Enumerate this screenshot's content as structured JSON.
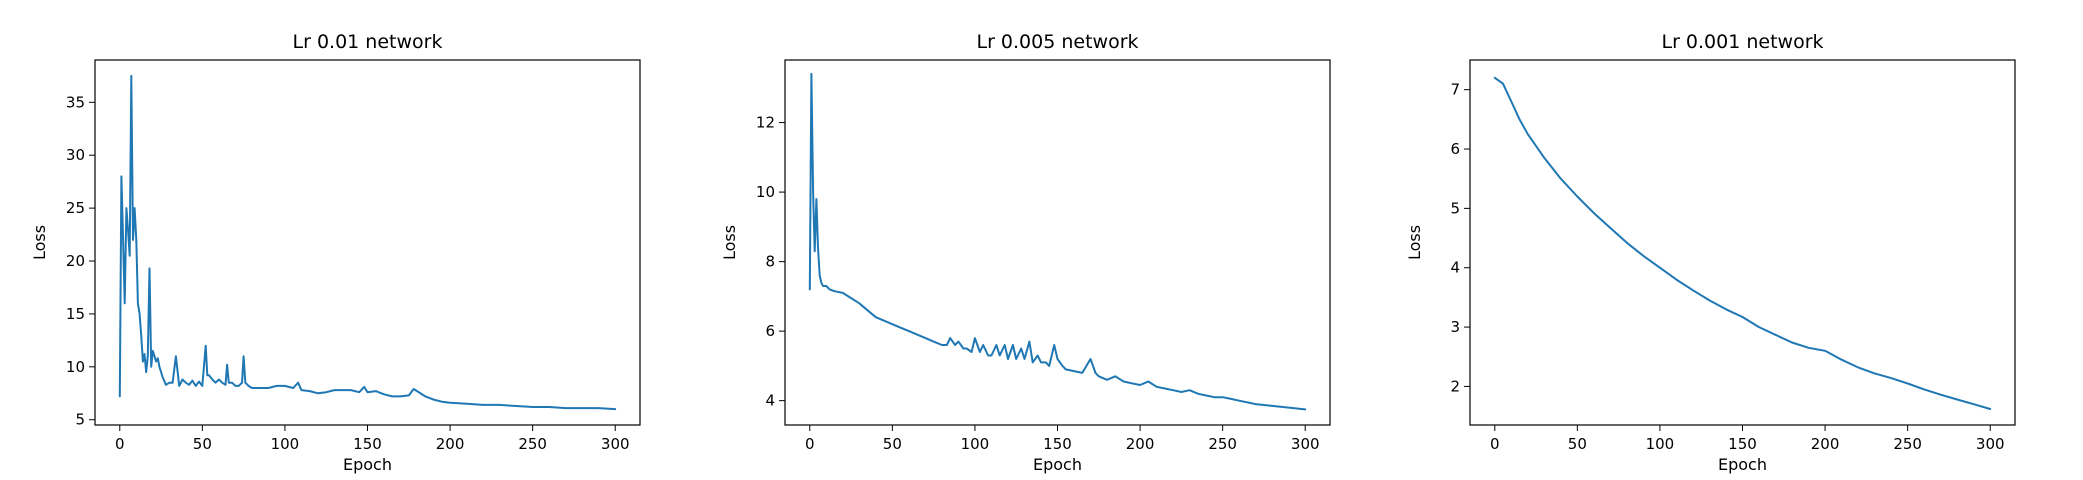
{
  "chart_data": [
    {
      "type": "line",
      "title": "Lr 0.01 network",
      "xlabel": "Epoch",
      "ylabel": "Loss",
      "xlim": [
        -15,
        315
      ],
      "ylim": [
        4.5,
        39
      ],
      "xticks": [
        0,
        50,
        100,
        150,
        200,
        250,
        300
      ],
      "yticks": [
        5,
        10,
        15,
        20,
        25,
        30,
        35
      ],
      "color": "#1f77b4",
      "grid": false,
      "legend": "none",
      "series": [
        {
          "x": [
            0,
            1,
            2,
            3,
            4,
            5,
            6,
            7,
            8,
            9,
            10,
            11,
            12,
            13,
            14,
            15,
            16,
            17,
            18,
            19,
            20,
            21,
            22,
            23,
            24,
            25,
            26,
            28,
            30,
            32,
            34,
            36,
            37,
            38,
            40,
            42,
            44,
            46,
            48,
            50,
            52,
            53,
            54,
            56,
            58,
            60,
            62,
            64,
            65,
            66,
            68,
            70,
            72,
            74,
            75,
            76,
            78,
            80,
            85,
            90,
            95,
            100,
            105,
            108,
            110,
            115,
            120,
            125,
            130,
            135,
            140,
            145,
            148,
            150,
            155,
            160,
            165,
            170,
            175,
            178,
            180,
            185,
            190,
            195,
            200,
            210,
            220,
            230,
            240,
            250,
            260,
            270,
            280,
            290,
            300
          ],
          "y": [
            7.2,
            28,
            22,
            16,
            25,
            23,
            20.5,
            37.5,
            22,
            25,
            22,
            16,
            15,
            13,
            10.5,
            11.2,
            9.5,
            11,
            19.3,
            10,
            11.5,
            11,
            10.5,
            10.8,
            10,
            9.5,
            9,
            8.3,
            8.5,
            8.5,
            11,
            8.2,
            8.5,
            8.8,
            8.5,
            8.3,
            8.7,
            8.2,
            8.6,
            8.2,
            12,
            9.2,
            9.2,
            8.8,
            8.5,
            8.8,
            8.5,
            8.3,
            10.2,
            8.5,
            8.5,
            8.2,
            8.2,
            8.5,
            11,
            8.5,
            8.2,
            8,
            8,
            8,
            8.2,
            8.2,
            8,
            8.5,
            7.8,
            7.7,
            7.5,
            7.6,
            7.8,
            7.8,
            7.8,
            7.6,
            8.1,
            7.6,
            7.7,
            7.4,
            7.2,
            7.2,
            7.3,
            7.9,
            7.7,
            7.2,
            6.9,
            6.7,
            6.6,
            6.5,
            6.4,
            6.4,
            6.3,
            6.2,
            6.2,
            6.1,
            6.1,
            6.1,
            6.0
          ]
        }
      ]
    },
    {
      "type": "line",
      "title": "Lr 0.005 network",
      "xlabel": "Epoch",
      "ylabel": "Loss",
      "xlim": [
        -15,
        315
      ],
      "ylim": [
        3.3,
        13.8
      ],
      "xticks": [
        0,
        50,
        100,
        150,
        200,
        250,
        300
      ],
      "yticks": [
        4,
        6,
        8,
        10,
        12
      ],
      "color": "#1f77b4",
      "grid": false,
      "legend": "none",
      "series": [
        {
          "x": [
            0,
            1,
            2,
            3,
            4,
            5,
            6,
            7,
            8,
            10,
            12,
            15,
            20,
            25,
            30,
            35,
            40,
            45,
            50,
            55,
            60,
            65,
            70,
            75,
            80,
            83,
            85,
            88,
            90,
            93,
            95,
            98,
            100,
            103,
            105,
            108,
            110,
            113,
            115,
            118,
            120,
            123,
            125,
            128,
            130,
            133,
            135,
            138,
            140,
            143,
            145,
            148,
            150,
            153,
            155,
            160,
            165,
            170,
            173,
            175,
            180,
            185,
            190,
            195,
            200,
            205,
            210,
            215,
            220,
            225,
            230,
            235,
            240,
            245,
            250,
            255,
            260,
            270,
            280,
            290,
            300
          ],
          "y": [
            7.2,
            13.4,
            10,
            8.3,
            9.8,
            8.4,
            7.6,
            7.4,
            7.3,
            7.3,
            7.2,
            7.15,
            7.1,
            6.95,
            6.8,
            6.6,
            6.4,
            6.3,
            6.2,
            6.1,
            6.0,
            5.9,
            5.8,
            5.7,
            5.6,
            5.6,
            5.8,
            5.6,
            5.7,
            5.5,
            5.5,
            5.4,
            5.8,
            5.4,
            5.6,
            5.3,
            5.3,
            5.6,
            5.3,
            5.6,
            5.2,
            5.6,
            5.2,
            5.5,
            5.2,
            5.7,
            5.1,
            5.3,
            5.1,
            5.1,
            5.0,
            5.6,
            5.2,
            5.0,
            4.9,
            4.85,
            4.8,
            5.2,
            4.8,
            4.7,
            4.6,
            4.7,
            4.55,
            4.5,
            4.45,
            4.55,
            4.4,
            4.35,
            4.3,
            4.25,
            4.3,
            4.2,
            4.15,
            4.1,
            4.1,
            4.05,
            4.0,
            3.9,
            3.85,
            3.8,
            3.75
          ]
        }
      ]
    },
    {
      "type": "line",
      "title": "Lr 0.001 network",
      "xlabel": "Epoch",
      "ylabel": "Loss",
      "xlim": [
        -15,
        315
      ],
      "ylim": [
        1.35,
        7.5
      ],
      "xticks": [
        0,
        50,
        100,
        150,
        200,
        250,
        300
      ],
      "yticks": [
        2,
        3,
        4,
        5,
        6,
        7
      ],
      "color": "#1f77b4",
      "grid": false,
      "legend": "none",
      "series": [
        {
          "x": [
            0,
            5,
            10,
            15,
            20,
            25,
            30,
            40,
            50,
            60,
            70,
            80,
            90,
            100,
            110,
            120,
            130,
            140,
            150,
            160,
            170,
            180,
            190,
            200,
            210,
            220,
            230,
            240,
            250,
            260,
            270,
            280,
            290,
            300
          ],
          "y": [
            7.2,
            7.1,
            6.8,
            6.5,
            6.25,
            6.05,
            5.85,
            5.5,
            5.2,
            4.92,
            4.67,
            4.42,
            4.2,
            4.0,
            3.8,
            3.62,
            3.45,
            3.3,
            3.17,
            3.0,
            2.87,
            2.74,
            2.65,
            2.6,
            2.45,
            2.32,
            2.22,
            2.14,
            2.05,
            1.95,
            1.86,
            1.78,
            1.7,
            1.62
          ]
        }
      ]
    }
  ]
}
